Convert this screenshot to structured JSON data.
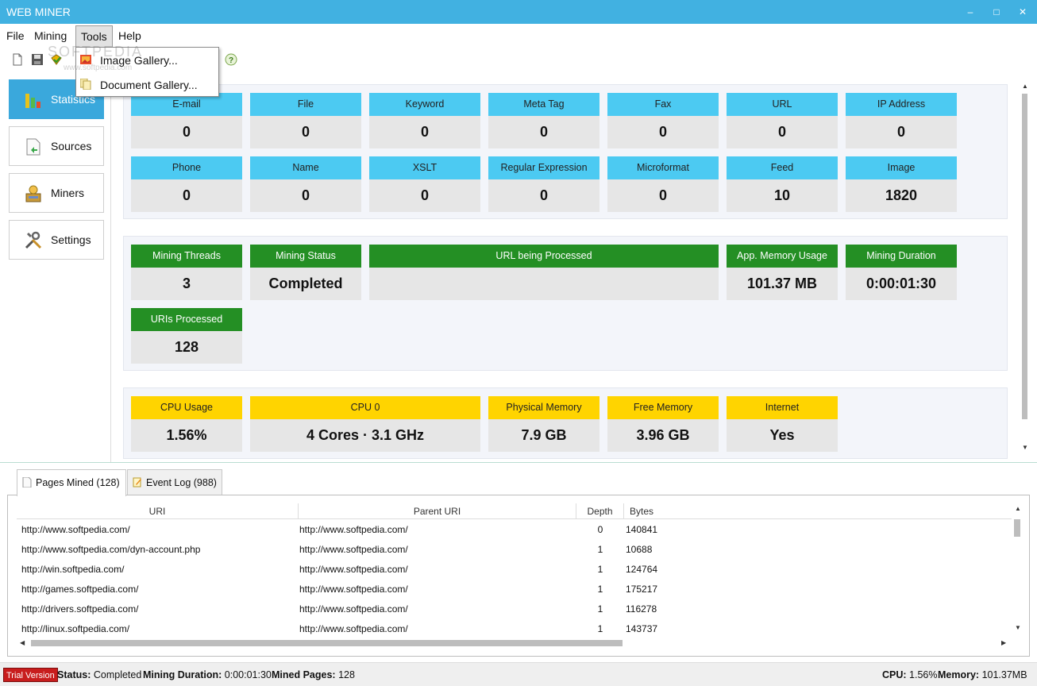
{
  "window": {
    "title": "WEB MINER"
  },
  "menu": [
    "File",
    "Mining",
    "Tools",
    "Help"
  ],
  "tools_menu": [
    "Image Gallery...",
    "Document Gallery..."
  ],
  "watermark": {
    "main": "SOFTPEDIA",
    "sub": "www.softpedia.com"
  },
  "sidebar": [
    {
      "label": "Statistics",
      "icon": "bar-chart-icon",
      "active": true
    },
    {
      "label": "Sources",
      "icon": "document-icon",
      "active": false
    },
    {
      "label": "Miners",
      "icon": "miners-icon",
      "active": false
    },
    {
      "label": "Settings",
      "icon": "wrench-icon",
      "active": false
    }
  ],
  "counts": [
    {
      "label": "E-mail",
      "value": "0"
    },
    {
      "label": "File",
      "value": "0"
    },
    {
      "label": "Keyword",
      "value": "0"
    },
    {
      "label": "Meta Tag",
      "value": "0"
    },
    {
      "label": "Fax",
      "value": "0"
    },
    {
      "label": "URL",
      "value": "0"
    },
    {
      "label": "IP Address",
      "value": "0"
    },
    {
      "label": "Phone",
      "value": "0"
    },
    {
      "label": "Name",
      "value": "0"
    },
    {
      "label": "XSLT",
      "value": "0"
    },
    {
      "label": "Regular Expression",
      "value": "0"
    },
    {
      "label": "Microformat",
      "value": "0"
    },
    {
      "label": "Feed",
      "value": "10"
    },
    {
      "label": "Image",
      "value": "1820"
    }
  ],
  "mining": [
    {
      "label": "Mining Threads",
      "value": "3"
    },
    {
      "label": "Mining Status",
      "value": "Completed"
    },
    {
      "label": "URL being Processed",
      "value": ""
    },
    {
      "label": "App. Memory Usage",
      "value": "101.37 MB"
    },
    {
      "label": "Mining Duration",
      "value": "0:00:01:30"
    },
    {
      "label": "URIs Processed",
      "value": "128"
    }
  ],
  "system": [
    {
      "label": "CPU Usage",
      "value": "1.56%"
    },
    {
      "label": "CPU 0",
      "value": "4 Cores · 3.1 GHz"
    },
    {
      "label": "Physical Memory",
      "value": "7.9 GB"
    },
    {
      "label": "Free Memory",
      "value": "3.96 GB"
    },
    {
      "label": "Internet",
      "value": "Yes"
    }
  ],
  "tabs": [
    {
      "label": "Pages Mined (128)",
      "active": true
    },
    {
      "label": "Event Log (988)",
      "active": false
    }
  ],
  "grid": {
    "columns": [
      "URI",
      "Parent URI",
      "Depth",
      "Bytes"
    ],
    "rows": [
      [
        "http://www.softpedia.com/",
        "http://www.softpedia.com/",
        "0",
        "140841"
      ],
      [
        "http://www.softpedia.com/dyn-account.php",
        "http://www.softpedia.com/",
        "1",
        "10688"
      ],
      [
        "http://win.softpedia.com/",
        "http://www.softpedia.com/",
        "1",
        "124764"
      ],
      [
        "http://games.softpedia.com/",
        "http://www.softpedia.com/",
        "1",
        "175217"
      ],
      [
        "http://drivers.softpedia.com/",
        "http://www.softpedia.com/",
        "1",
        "116278"
      ],
      [
        "http://linux.softpedia.com/",
        "http://www.softpedia.com/",
        "1",
        "143737"
      ]
    ]
  },
  "status": {
    "trial": "Trial Version",
    "status_label": "Status:",
    "status_value": "Completed",
    "duration_label": "Mining Duration:",
    "duration_value": "0:00:01:30",
    "pages_label": "Mined Pages:",
    "pages_value": "128",
    "cpu_label": "CPU:",
    "cpu_value": "1.56%",
    "memory_label": "Memory:",
    "memory_value": "101.37MB"
  },
  "colors": {
    "titlebar": "#41b1e1",
    "blue_tile": "#4ccaf2",
    "green_tile": "#248f24",
    "yellow_tile": "#ffd400",
    "trial": "#c81d1d"
  }
}
